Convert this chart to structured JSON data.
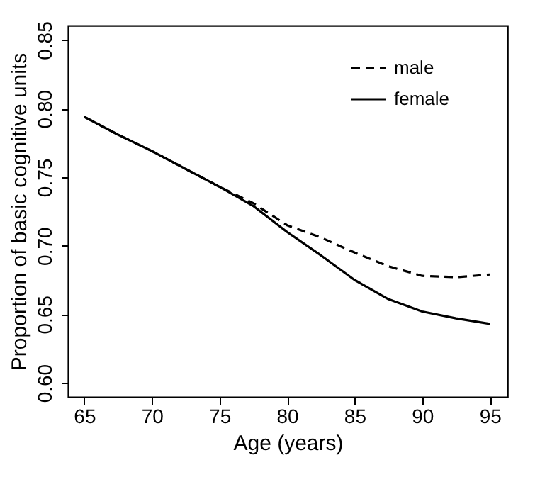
{
  "chart_data": {
    "type": "line",
    "xlabel": "Age (years)",
    "ylabel": "Proportion of basic cognitive units",
    "x": [
      65,
      67.5,
      70,
      72.5,
      75,
      77.5,
      80,
      82.5,
      85,
      87.5,
      90,
      92.5,
      95
    ],
    "series": [
      {
        "name": "male",
        "color": "#000000",
        "line_style": "dashed",
        "values": [
          0.794,
          0.781,
          0.769,
          0.756,
          0.743,
          0.731,
          0.715,
          0.706,
          0.695,
          0.685,
          0.678,
          0.677,
          0.679
        ]
      },
      {
        "name": "female",
        "color": "#000000",
        "line_style": "solid",
        "values": [
          0.794,
          0.781,
          0.769,
          0.756,
          0.743,
          0.729,
          0.71,
          0.693,
          0.675,
          0.661,
          0.652,
          0.647,
          0.643
        ]
      }
    ],
    "xlim": [
      63.8,
      96.3
    ],
    "xticks": [
      65,
      70,
      75,
      80,
      85,
      90,
      95
    ],
    "ylim": [
      0.5897,
      0.8606
    ],
    "yticks": [
      {
        "value": 0.6,
        "label": "0.60"
      },
      {
        "value": 0.65,
        "label": "0.65"
      },
      {
        "value": 0.7,
        "label": "0.70"
      },
      {
        "value": 0.75,
        "label": "0.75"
      },
      {
        "value": 0.8,
        "label": "0.80"
      },
      {
        "value": 0.85,
        "label": "0.85"
      }
    ],
    "grid": false,
    "legend": "top right",
    "marker": "none"
  }
}
